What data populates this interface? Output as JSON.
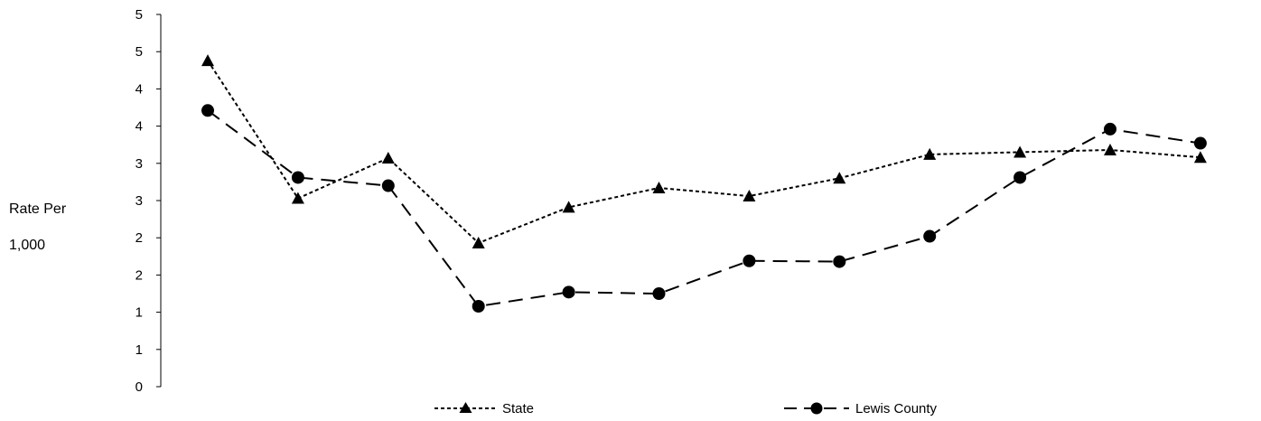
{
  "chart_data": {
    "type": "line",
    "title": "",
    "xlabel": "",
    "ylabel": [
      "Rate Per",
      "1,000"
    ],
    "ylim": [
      0,
      5
    ],
    "y_tick_labels": [
      "0",
      "1",
      "1",
      "2",
      "2",
      "3",
      "3",
      "4",
      "4",
      "5",
      "5"
    ],
    "grid": false,
    "legend_position": "bottom",
    "series": [
      {
        "name": "State",
        "marker": "triangle",
        "dash": "short",
        "values": [
          4.38,
          2.53,
          3.07,
          1.93,
          2.41,
          2.67,
          2.56,
          2.8,
          3.12,
          3.15,
          3.18,
          3.08
        ]
      },
      {
        "name": "Lewis County",
        "marker": "circle",
        "dash": "long",
        "values": [
          3.71,
          2.81,
          2.7,
          1.08,
          1.27,
          1.25,
          1.69,
          1.68,
          2.02,
          2.81,
          3.46,
          3.27
        ]
      }
    ],
    "colors": {
      "line": "#000000",
      "axis": "#000000"
    }
  }
}
